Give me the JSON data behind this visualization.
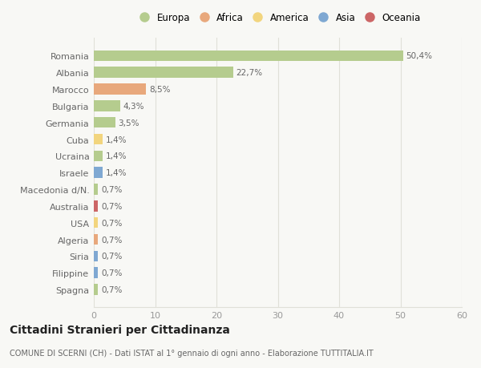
{
  "countries": [
    "Romania",
    "Albania",
    "Marocco",
    "Bulgaria",
    "Germania",
    "Cuba",
    "Ucraina",
    "Israele",
    "Macedonia d/N.",
    "Australia",
    "USA",
    "Algeria",
    "Siria",
    "Filippine",
    "Spagna"
  ],
  "values": [
    50.4,
    22.7,
    8.5,
    4.3,
    3.5,
    1.4,
    1.4,
    1.4,
    0.7,
    0.7,
    0.7,
    0.7,
    0.7,
    0.7,
    0.7
  ],
  "labels": [
    "50,4%",
    "22,7%",
    "8,5%",
    "4,3%",
    "3,5%",
    "1,4%",
    "1,4%",
    "1,4%",
    "0,7%",
    "0,7%",
    "0,7%",
    "0,7%",
    "0,7%",
    "0,7%",
    "0,7%"
  ],
  "colors": [
    "#b5cc8e",
    "#b5cc8e",
    "#e8a87c",
    "#b5cc8e",
    "#b5cc8e",
    "#f2d57e",
    "#b5cc8e",
    "#7fa8d2",
    "#b5cc8e",
    "#cc6666",
    "#f2d57e",
    "#e8a87c",
    "#7fa8d2",
    "#7fa8d2",
    "#b5cc8e"
  ],
  "continent_labels": [
    "Europa",
    "Africa",
    "America",
    "Asia",
    "Oceania"
  ],
  "continent_colors": [
    "#b5cc8e",
    "#e8a87c",
    "#f2d57e",
    "#7fa8d2",
    "#cc6666"
  ],
  "xlim": [
    0,
    60
  ],
  "xticks": [
    0,
    10,
    20,
    30,
    40,
    50,
    60
  ],
  "title": "Cittadini Stranieri per Cittadinanza",
  "subtitle": "COMUNE DI SCERNI (CH) - Dati ISTAT al 1° gennaio di ogni anno - Elaborazione TUTTITALIA.IT",
  "bg_color": "#f8f8f5",
  "bar_height": 0.65,
  "grid_color": "#e0e0d8"
}
